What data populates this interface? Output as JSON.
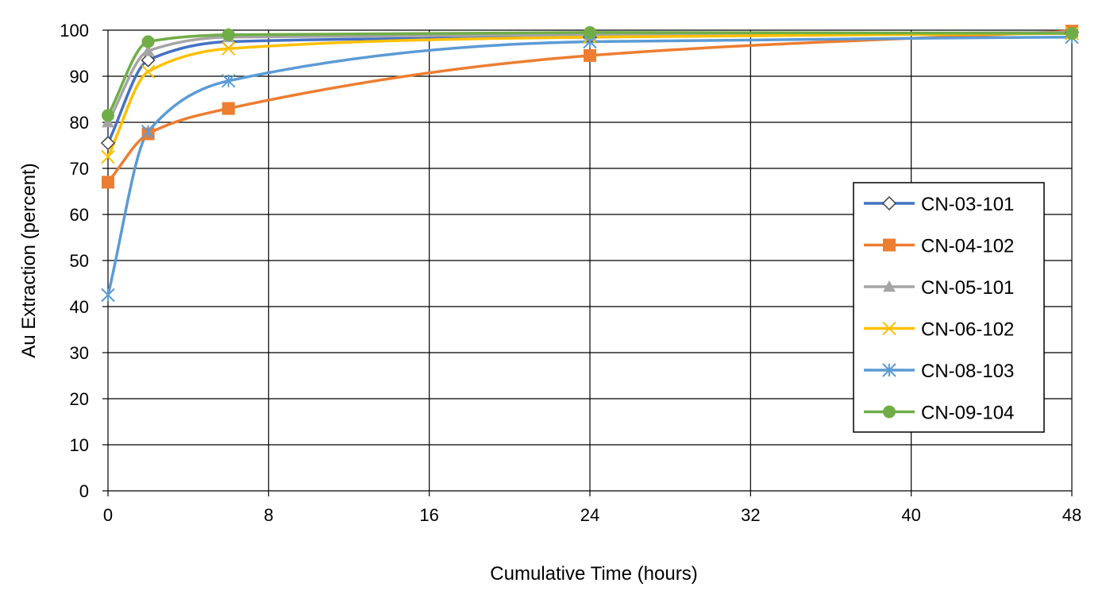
{
  "chart_data": {
    "type": "line",
    "xlabel": "Cumulative Time (hours)",
    "ylabel": "Au Extraction (percent)",
    "xlim": [
      0,
      48
    ],
    "ylim": [
      0,
      100
    ],
    "xticks": [
      0,
      8,
      16,
      24,
      32,
      40,
      48
    ],
    "yticks": [
      0,
      10,
      20,
      30,
      40,
      50,
      60,
      70,
      80,
      90,
      100
    ],
    "grid": true,
    "legend_position": "right",
    "x": [
      0,
      2,
      6,
      24,
      48
    ],
    "series": [
      {
        "name": "CN-03-101",
        "color": "#4472C4",
        "marker": "diamond-open",
        "values": [
          75.5,
          93.5,
          97.5,
          98.5,
          99.5
        ]
      },
      {
        "name": "CN-04-102",
        "color": "#ED7D31",
        "marker": "square",
        "values": [
          67,
          77.5,
          83,
          94.5,
          99.8
        ]
      },
      {
        "name": "CN-05-101",
        "color": "#A5A5A5",
        "marker": "triangle",
        "values": [
          80,
          95.5,
          98.5,
          99,
          99.5
        ]
      },
      {
        "name": "CN-06-102",
        "color": "#FFC000",
        "marker": "x",
        "values": [
          72.5,
          91,
          96,
          98.5,
          99.3
        ]
      },
      {
        "name": "CN-08-103",
        "color": "#5B9BD5",
        "marker": "asterisk",
        "values": [
          42.5,
          78,
          89,
          97.5,
          98.5
        ]
      },
      {
        "name": "CN-09-104",
        "color": "#70AD47",
        "marker": "circle",
        "values": [
          81.5,
          97.5,
          99,
          99.5,
          99.3
        ]
      }
    ]
  }
}
